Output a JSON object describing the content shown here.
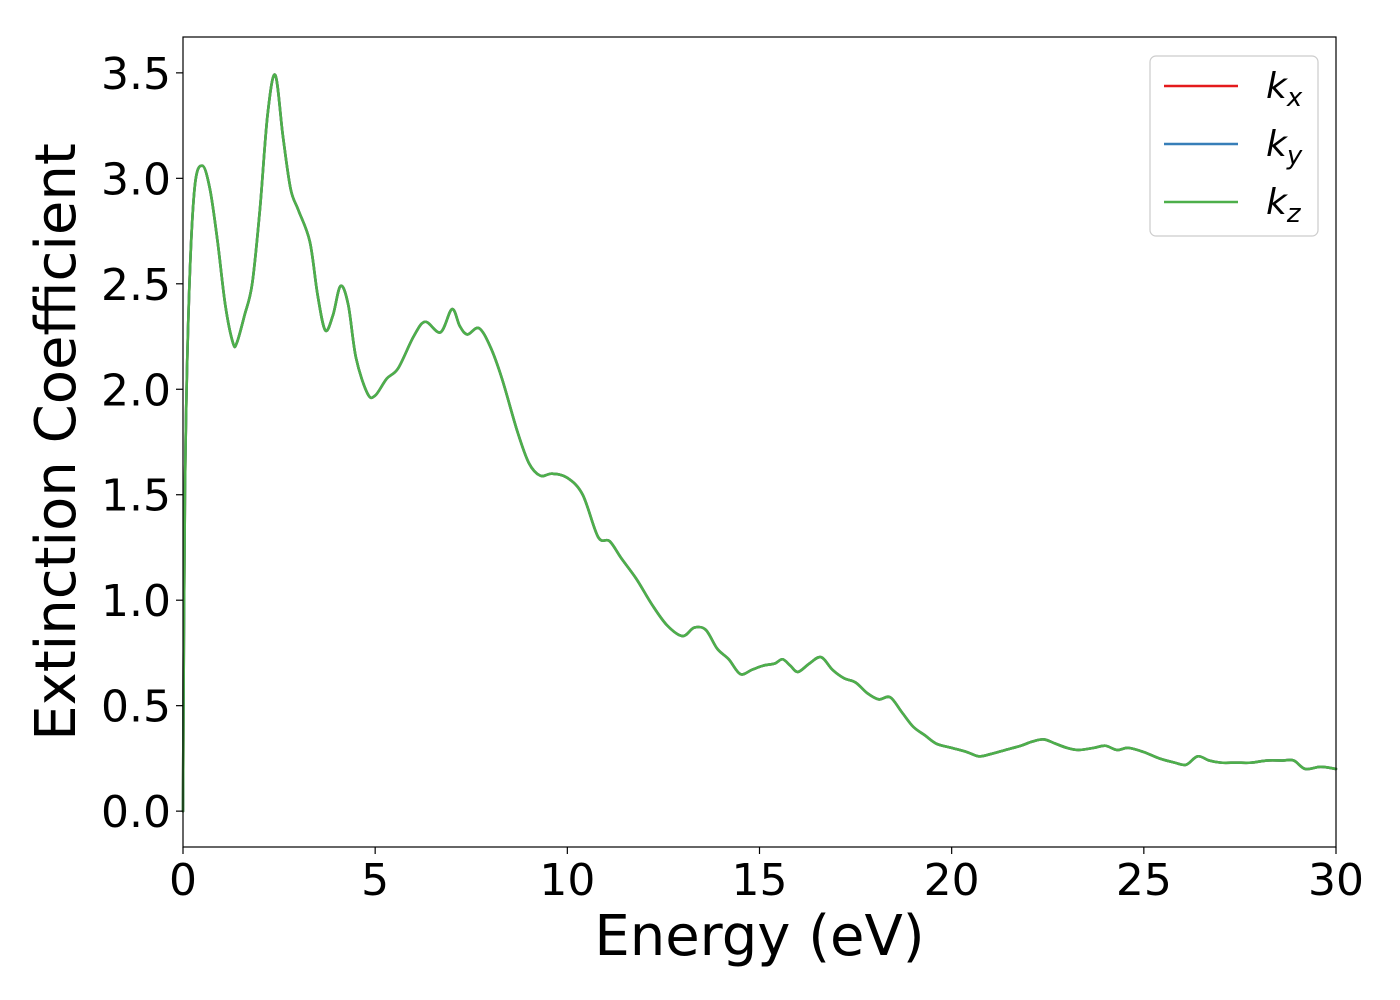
{
  "chart_data": {
    "type": "line",
    "xlabel": "Energy (eV)",
    "ylabel": "Extinction Coefficient",
    "xlim": [
      0,
      30
    ],
    "ylim": [
      -0.17,
      3.67
    ],
    "xticks": [
      "0",
      "5",
      "10",
      "15",
      "20",
      "25",
      "30"
    ],
    "yticks": [
      "0.0",
      "0.5",
      "1.0",
      "1.5",
      "2.0",
      "2.5",
      "3.0",
      "3.5"
    ],
    "xtick_values": [
      0,
      5,
      10,
      15,
      20,
      25,
      30
    ],
    "ytick_values": [
      0.0,
      0.5,
      1.0,
      1.5,
      2.0,
      2.5,
      3.0,
      3.5
    ],
    "grid": false,
    "legend_position": "top-right",
    "series": [
      {
        "name": "k_x",
        "base": "k",
        "sub": "x",
        "color": "#e41a1c"
      },
      {
        "name": "k_y",
        "base": "k",
        "sub": "y",
        "color": "#377eb8"
      },
      {
        "name": "k_z",
        "base": "k",
        "sub": "z",
        "color": "#4daf4a"
      }
    ],
    "x": [
      0,
      0.05,
      0.15,
      0.3,
      0.5,
      0.7,
      0.9,
      1.1,
      1.3,
      1.4,
      1.6,
      1.8,
      2.0,
      2.2,
      2.4,
      2.6,
      2.8,
      3.0,
      3.3,
      3.5,
      3.7,
      3.9,
      4.1,
      4.3,
      4.5,
      4.8,
      5.0,
      5.3,
      5.6,
      6.0,
      6.3,
      6.7,
      7.0,
      7.2,
      7.4,
      7.7,
      8.0,
      8.3,
      8.7,
      9.0,
      9.3,
      9.6,
      10.0,
      10.4,
      10.8,
      11.1,
      11.4,
      11.8,
      12.2,
      12.6,
      13.0,
      13.3,
      13.6,
      13.9,
      14.2,
      14.5,
      14.8,
      15.1,
      15.4,
      15.6,
      15.8,
      16.0,
      16.3,
      16.6,
      16.9,
      17.2,
      17.5,
      17.8,
      18.1,
      18.4,
      18.7,
      19.0,
      19.3,
      19.6,
      20.0,
      20.4,
      20.7,
      21.0,
      21.4,
      21.8,
      22.1,
      22.4,
      22.7,
      23.0,
      23.3,
      23.7,
      24.0,
      24.3,
      24.6,
      25.0,
      25.4,
      25.8,
      26.1,
      26.4,
      26.7,
      27.0,
      27.4,
      27.8,
      28.2,
      28.6,
      28.9,
      29.2,
      29.6,
      30.0
    ],
    "values": [
      0.0,
      1.5,
      2.4,
      2.95,
      3.06,
      2.95,
      2.7,
      2.4,
      2.22,
      2.22,
      2.35,
      2.5,
      2.85,
      3.3,
      3.49,
      3.2,
      2.95,
      2.85,
      2.7,
      2.45,
      2.28,
      2.35,
      2.49,
      2.4,
      2.15,
      1.98,
      1.97,
      2.05,
      2.1,
      2.25,
      2.32,
      2.27,
      2.38,
      2.3,
      2.26,
      2.29,
      2.2,
      2.05,
      1.8,
      1.65,
      1.59,
      1.6,
      1.58,
      1.5,
      1.3,
      1.28,
      1.2,
      1.1,
      0.98,
      0.88,
      0.83,
      0.87,
      0.86,
      0.77,
      0.72,
      0.65,
      0.67,
      0.69,
      0.7,
      0.72,
      0.69,
      0.66,
      0.7,
      0.73,
      0.67,
      0.63,
      0.61,
      0.56,
      0.53,
      0.54,
      0.47,
      0.4,
      0.36,
      0.32,
      0.3,
      0.28,
      0.26,
      0.27,
      0.29,
      0.31,
      0.33,
      0.34,
      0.32,
      0.3,
      0.29,
      0.3,
      0.31,
      0.29,
      0.3,
      0.28,
      0.25,
      0.23,
      0.22,
      0.26,
      0.24,
      0.23,
      0.23,
      0.23,
      0.24,
      0.24,
      0.24,
      0.2,
      0.21,
      0.2
    ]
  }
}
